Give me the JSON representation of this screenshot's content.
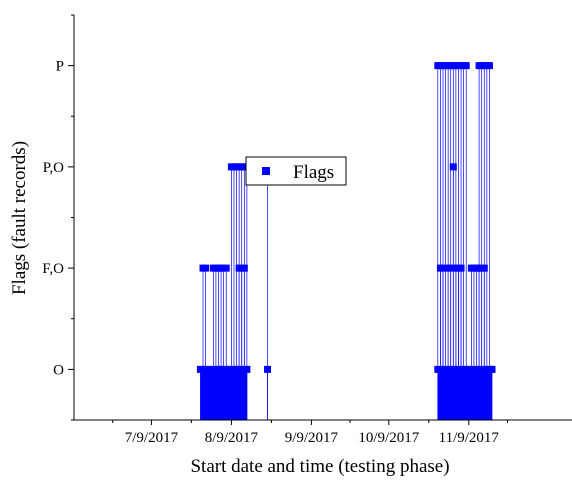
{
  "chart_data": {
    "type": "scatter",
    "xlabel": "Start date and time (testing phase)",
    "ylabel": "Flags (fault records)",
    "x_ticks": [
      "7/9/2017",
      "8/9/2017",
      "9/9/2017",
      "10/9/2017",
      "11/9/2017"
    ],
    "x_tick_dates": [
      "2017-07-09",
      "2017-08-09",
      "2017-09-09",
      "2017-10-09",
      "2017-11-09"
    ],
    "xlim": [
      "2017-06-09",
      "2017-12-19"
    ],
    "y_ticks": [
      "O",
      "F,O",
      "P,O",
      "P"
    ],
    "y_tick_values": [
      0,
      1,
      2,
      3
    ],
    "ylim": [
      -0.5,
      3.5
    ],
    "y_minor_step": 0.5,
    "drop_lines": true,
    "legend": {
      "label": "Flags",
      "position": "center"
    },
    "colors": {
      "series": "#0000ff",
      "axis": "#000000",
      "background": "#ffffff"
    },
    "series": [
      {
        "name": "Flags",
        "dense_bands": [
          {
            "x_start": "2017-07-28",
            "x_end": "2017-08-15",
            "y_from": -0.5,
            "y_to": 0
          },
          {
            "x_start": "2017-10-28",
            "x_end": "2017-11-18",
            "y_from": -0.5,
            "y_to": 0
          }
        ],
        "points": [
          {
            "x": "2017-07-28",
            "y": 0
          },
          {
            "x": "2017-07-30",
            "y": 0
          },
          {
            "x": "2017-08-01",
            "y": 0
          },
          {
            "x": "2017-08-03",
            "y": 0
          },
          {
            "x": "2017-08-05",
            "y": 0
          },
          {
            "x": "2017-08-07",
            "y": 0
          },
          {
            "x": "2017-08-09",
            "y": 0
          },
          {
            "x": "2017-08-11",
            "y": 0
          },
          {
            "x": "2017-08-13",
            "y": 0
          },
          {
            "x": "2017-08-15",
            "y": 0
          },
          {
            "x": "2017-07-29",
            "y": 1
          },
          {
            "x": "2017-07-30",
            "y": 1
          },
          {
            "x": "2017-08-02",
            "y": 1
          },
          {
            "x": "2017-08-03",
            "y": 1
          },
          {
            "x": "2017-08-04",
            "y": 1
          },
          {
            "x": "2017-08-05",
            "y": 1
          },
          {
            "x": "2017-08-06",
            "y": 1
          },
          {
            "x": "2017-08-07",
            "y": 1
          },
          {
            "x": "2017-08-12",
            "y": 1
          },
          {
            "x": "2017-08-13",
            "y": 1
          },
          {
            "x": "2017-08-14",
            "y": 1
          },
          {
            "x": "2017-08-09",
            "y": 2
          },
          {
            "x": "2017-08-10",
            "y": 2
          },
          {
            "x": "2017-08-11",
            "y": 2
          },
          {
            "x": "2017-08-12",
            "y": 2
          },
          {
            "x": "2017-08-13",
            "y": 2
          },
          {
            "x": "2017-08-14",
            "y": 2
          },
          {
            "x": "2017-08-15",
            "y": 2
          },
          {
            "x": "2017-08-23",
            "y": 2
          },
          {
            "x": "2017-08-23",
            "y": 0
          },
          {
            "x": "2017-10-28",
            "y": 0
          },
          {
            "x": "2017-10-30",
            "y": 0
          },
          {
            "x": "2017-11-01",
            "y": 0
          },
          {
            "x": "2017-11-03",
            "y": 0
          },
          {
            "x": "2017-11-05",
            "y": 0
          },
          {
            "x": "2017-11-07",
            "y": 0
          },
          {
            "x": "2017-11-09",
            "y": 0
          },
          {
            "x": "2017-11-11",
            "y": 0
          },
          {
            "x": "2017-11-13",
            "y": 0
          },
          {
            "x": "2017-11-15",
            "y": 0
          },
          {
            "x": "2017-11-17",
            "y": 0
          },
          {
            "x": "2017-11-18",
            "y": 0
          },
          {
            "x": "2017-10-29",
            "y": 1
          },
          {
            "x": "2017-10-30",
            "y": 1
          },
          {
            "x": "2017-11-01",
            "y": 1
          },
          {
            "x": "2017-11-02",
            "y": 1
          },
          {
            "x": "2017-11-04",
            "y": 1
          },
          {
            "x": "2017-11-05",
            "y": 1
          },
          {
            "x": "2017-11-06",
            "y": 1
          },
          {
            "x": "2017-11-10",
            "y": 1
          },
          {
            "x": "2017-11-11",
            "y": 1
          },
          {
            "x": "2017-11-12",
            "y": 1
          },
          {
            "x": "2017-11-13",
            "y": 1
          },
          {
            "x": "2017-11-14",
            "y": 1
          },
          {
            "x": "2017-11-15",
            "y": 1
          },
          {
            "x": "2017-11-03",
            "y": 2
          },
          {
            "x": "2017-10-28",
            "y": 3
          },
          {
            "x": "2017-10-29",
            "y": 3
          },
          {
            "x": "2017-10-30",
            "y": 3
          },
          {
            "x": "2017-10-31",
            "y": 3
          },
          {
            "x": "2017-11-01",
            "y": 3
          },
          {
            "x": "2017-11-02",
            "y": 3
          },
          {
            "x": "2017-11-03",
            "y": 3
          },
          {
            "x": "2017-11-04",
            "y": 3
          },
          {
            "x": "2017-11-05",
            "y": 3
          },
          {
            "x": "2017-11-06",
            "y": 3
          },
          {
            "x": "2017-11-07",
            "y": 3
          },
          {
            "x": "2017-11-08",
            "y": 3
          },
          {
            "x": "2017-11-13",
            "y": 3
          },
          {
            "x": "2017-11-14",
            "y": 3
          },
          {
            "x": "2017-11-15",
            "y": 3
          },
          {
            "x": "2017-11-16",
            "y": 3
          },
          {
            "x": "2017-11-17",
            "y": 3
          }
        ]
      }
    ]
  }
}
